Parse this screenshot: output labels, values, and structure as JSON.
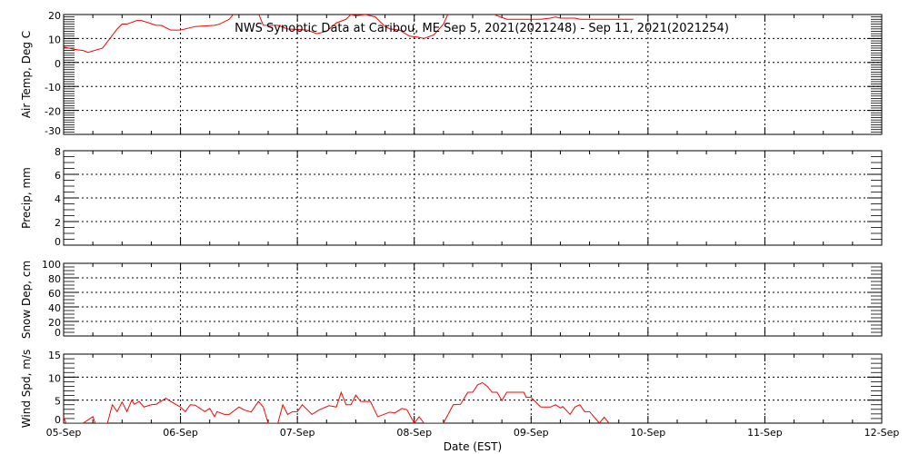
{
  "title": "NWS Synoptic Data at Caribou, ME   Sep  5, 2021(2021248) - Sep 11, 2021(2021254)",
  "colors": {
    "series": "#ff0000",
    "axes": "#000000",
    "background": "#ffffff"
  },
  "chart_data": [
    {
      "type": "line",
      "ylabel": "Air Temp, Deg C",
      "ylim": [
        -30,
        20
      ],
      "yticks": [
        "-30",
        "-20",
        "-10",
        "0",
        "10",
        "20"
      ],
      "xlim": [
        "2021-09-05 00:00",
        "2021-09-12 00:00"
      ],
      "grid": true,
      "points": [
        [
          "2021-09-05 00:00",
          6.5
        ],
        [
          "2021-09-05 02:00",
          5.5
        ],
        [
          "2021-09-05 04:00",
          5
        ],
        [
          "2021-09-05 05:00",
          4.2
        ],
        [
          "2021-09-05 08:00",
          6
        ],
        [
          "2021-09-05 09:30",
          10
        ],
        [
          "2021-09-05 11:00",
          14
        ],
        [
          "2021-09-05 12:00",
          16
        ],
        [
          "2021-09-05 13:00",
          16
        ],
        [
          "2021-09-05 15:00",
          17.5
        ],
        [
          "2021-09-05 16:00",
          17.5
        ],
        [
          "2021-09-05 19:00",
          15.5
        ],
        [
          "2021-09-05 20:00",
          15.5
        ],
        [
          "2021-09-05 22:00",
          13.5
        ],
        [
          "2021-09-06 00:00",
          13.5
        ],
        [
          "2021-09-06 03:00",
          15
        ],
        [
          "2021-09-06 07:00",
          15.5
        ],
        [
          "2021-09-06 08:00",
          16
        ],
        [
          "2021-09-06 10:00",
          18
        ],
        [
          "2021-09-06 11:00",
          20.5
        ],
        [
          "2021-09-06 13:00",
          22
        ],
        [
          "2021-09-06 15:00",
          22
        ],
        [
          "2021-09-06 16:00",
          20.5
        ],
        [
          "2021-09-06 17:00",
          15.5
        ],
        [
          "2021-09-06 20:00",
          15.5
        ],
        [
          "2021-09-06 22:00",
          14
        ],
        [
          "2021-09-07 02:00",
          13.5
        ],
        [
          "2021-09-07 04:00",
          12
        ],
        [
          "2021-09-07 06:00",
          13
        ],
        [
          "2021-09-07 08:00",
          16.5
        ],
        [
          "2021-09-07 10:00",
          18
        ],
        [
          "2021-09-07 11:00",
          20
        ],
        [
          "2021-09-07 12:00",
          19.5
        ],
        [
          "2021-09-07 14:00",
          20
        ],
        [
          "2021-09-07 16:00",
          19
        ],
        [
          "2021-09-07 18:00",
          15
        ],
        [
          "2021-09-07 19:00",
          14
        ],
        [
          "2021-09-07 21:00",
          13.5
        ],
        [
          "2021-09-07 23:00",
          11
        ],
        [
          "2021-09-08 01:00",
          10.5
        ],
        [
          "2021-09-08 02:00",
          10
        ],
        [
          "2021-09-08 04:00",
          11.5
        ],
        [
          "2021-09-08 06:00",
          16
        ],
        [
          "2021-09-08 07:00",
          20.5
        ],
        [
          "2021-09-08 09:00",
          22
        ],
        [
          "2021-09-08 14:00",
          22
        ],
        [
          "2021-09-08 16:00",
          20.5
        ],
        [
          "2021-09-08 17:00",
          19.5
        ],
        [
          "2021-09-08 19:00",
          18
        ],
        [
          "2021-09-08 22:00",
          18
        ],
        [
          "2021-09-09 02:00",
          18
        ],
        [
          "2021-09-09 04:00",
          18.5
        ],
        [
          "2021-09-09 05:00",
          19
        ],
        [
          "2021-09-09 06:00",
          18.5
        ],
        [
          "2021-09-09 09:00",
          18.5
        ],
        [
          "2021-09-09 10:00",
          18
        ],
        [
          "2021-09-09 16:00",
          18
        ],
        [
          "2021-09-09 21:00",
          18
        ]
      ]
    },
    {
      "type": "line",
      "ylabel": "Precip, mm",
      "ylim": [
        0,
        8
      ],
      "yticks": [
        "0",
        "2",
        "4",
        "6",
        "8"
      ],
      "xlim": [
        "2021-09-05 00:00",
        "2021-09-12 00:00"
      ],
      "grid": true,
      "points": []
    },
    {
      "type": "line",
      "ylabel": "Snow Dep, cm",
      "ylim": [
        0,
        100
      ],
      "yticks": [
        "0",
        "20",
        "40",
        "60",
        "80",
        "100"
      ],
      "xlim": [
        "2021-09-05 00:00",
        "2021-09-12 00:00"
      ],
      "grid": true,
      "points": []
    },
    {
      "type": "line",
      "ylabel": "Wind Spd, m/s",
      "ylim": [
        0,
        15
      ],
      "yticks": [
        "0",
        "5",
        "10",
        "15"
      ],
      "xlim": [
        "2021-09-05 00:00",
        "2021-09-12 00:00"
      ],
      "xlabel": "Date (EST)",
      "xticks": [
        "05-Sep",
        "06-Sep",
        "07-Sep",
        "08-Sep",
        "09-Sep",
        "10-Sep",
        "11-Sep",
        "12-Sep"
      ],
      "grid": true,
      "points": [
        [
          "2021-09-05 00:00",
          1.3
        ],
        [
          "2021-09-05 00:30",
          0
        ],
        [
          "2021-09-05 04:00",
          0
        ],
        [
          "2021-09-05 06:00",
          1.4
        ],
        [
          "2021-09-05 06:30",
          0
        ],
        [
          "2021-09-05 09:00",
          0
        ],
        [
          "2021-09-05 10:00",
          4
        ],
        [
          "2021-09-05 11:00",
          2.5
        ],
        [
          "2021-09-05 12:00",
          4.6
        ],
        [
          "2021-09-05 13:00",
          2.5
        ],
        [
          "2021-09-05 14:00",
          5
        ],
        [
          "2021-09-05 14:30",
          4.1
        ],
        [
          "2021-09-05 15:30",
          4.7
        ],
        [
          "2021-09-05 16:30",
          3.5
        ],
        [
          "2021-09-05 18:00",
          4
        ],
        [
          "2021-09-05 19:00",
          4.1
        ],
        [
          "2021-09-05 21:00",
          5.4
        ],
        [
          "2021-09-05 22:00",
          4.7
        ],
        [
          "2021-09-06 00:00",
          3.5
        ],
        [
          "2021-09-06 01:00",
          2.5
        ],
        [
          "2021-09-06 02:00",
          4
        ],
        [
          "2021-09-06 03:00",
          3.9
        ],
        [
          "2021-09-06 05:00",
          2.5
        ],
        [
          "2021-09-06 06:00",
          3.2
        ],
        [
          "2021-09-06 07:00",
          1.4
        ],
        [
          "2021-09-06 07:30",
          2.5
        ],
        [
          "2021-09-06 09:00",
          1.9
        ],
        [
          "2021-09-06 10:00",
          1.9
        ],
        [
          "2021-09-06 12:00",
          3.5
        ],
        [
          "2021-09-06 13:00",
          2.9
        ],
        [
          "2021-09-06 14:30",
          2.4
        ],
        [
          "2021-09-06 16:00",
          4.7
        ],
        [
          "2021-09-06 17:00",
          3.5
        ],
        [
          "2021-09-06 18:00",
          0
        ],
        [
          "2021-09-06 20:00",
          0
        ],
        [
          "2021-09-06 21:00",
          4
        ],
        [
          "2021-09-06 22:00",
          1.9
        ],
        [
          "2021-09-06 23:00",
          2.5
        ],
        [
          "2021-09-07 00:00",
          2.5
        ],
        [
          "2021-09-07 01:00",
          4
        ],
        [
          "2021-09-07 03:00",
          1.9
        ],
        [
          "2021-09-07 04:30",
          2.9
        ],
        [
          "2021-09-07 06:30",
          3.8
        ],
        [
          "2021-09-07 08:00",
          3.5
        ],
        [
          "2021-09-07 09:00",
          6.7
        ],
        [
          "2021-09-07 10:00",
          4
        ],
        [
          "2021-09-07 11:00",
          4
        ],
        [
          "2021-09-07 12:00",
          6.1
        ],
        [
          "2021-09-07 13:00",
          4.7
        ],
        [
          "2021-09-07 15:00",
          4.7
        ],
        [
          "2021-09-07 16:30",
          1.4
        ],
        [
          "2021-09-07 19:00",
          2.4
        ],
        [
          "2021-09-07 20:00",
          2.2
        ],
        [
          "2021-09-07 21:30",
          3.2
        ],
        [
          "2021-09-07 22:30",
          2.9
        ],
        [
          "2021-09-08 00:00",
          0
        ],
        [
          "2021-09-08 01:00",
          1.4
        ],
        [
          "2021-09-08 02:00",
          0
        ],
        [
          "2021-09-08 06:00",
          0
        ],
        [
          "2021-09-08 08:00",
          4
        ],
        [
          "2021-09-08 09:30",
          4.1
        ],
        [
          "2021-09-08 11:00",
          6.7
        ],
        [
          "2021-09-08 12:00",
          6.7
        ],
        [
          "2021-09-08 13:00",
          8.3
        ],
        [
          "2021-09-08 14:00",
          8.8
        ],
        [
          "2021-09-08 15:00",
          8
        ],
        [
          "2021-09-08 16:00",
          6.7
        ],
        [
          "2021-09-08 17:00",
          6.7
        ],
        [
          "2021-09-08 18:00",
          4.9
        ],
        [
          "2021-09-08 19:00",
          6.7
        ],
        [
          "2021-09-08 22:30",
          6.7
        ],
        [
          "2021-09-08 23:00",
          5.6
        ],
        [
          "2021-09-09 00:00",
          5.6
        ],
        [
          "2021-09-09 01:30",
          4
        ],
        [
          "2021-09-09 02:00",
          3.5
        ],
        [
          "2021-09-09 04:00",
          3.5
        ],
        [
          "2021-09-09 05:00",
          4
        ],
        [
          "2021-09-09 06:00",
          3.3
        ],
        [
          "2021-09-09 06:30",
          3.6
        ],
        [
          "2021-09-09 08:00",
          1.9
        ],
        [
          "2021-09-09 09:00",
          3.5
        ],
        [
          "2021-09-09 10:00",
          4
        ],
        [
          "2021-09-09 11:00",
          2.5
        ],
        [
          "2021-09-09 12:00",
          2.5
        ],
        [
          "2021-09-09 14:00",
          0
        ],
        [
          "2021-09-09 15:00",
          1.3
        ],
        [
          "2021-09-09 16:00",
          0
        ]
      ]
    }
  ]
}
